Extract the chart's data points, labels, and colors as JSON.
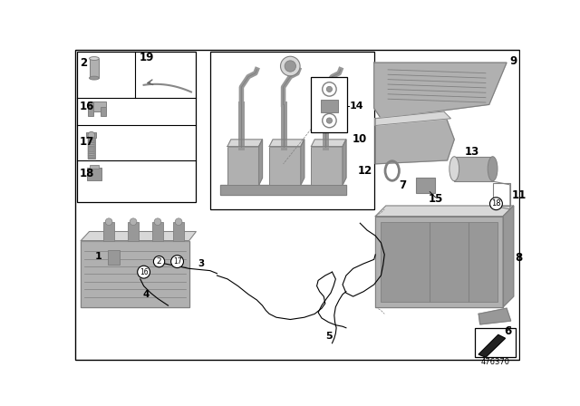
{
  "title": "",
  "background_color": "#ffffff",
  "fig_width": 6.4,
  "fig_height": 4.48,
  "dpi": 100,
  "diagram_number": "476370",
  "gray1": "#c8c8c8",
  "gray2": "#b0b0b0",
  "gray3": "#989898",
  "gray4": "#808080",
  "gray5": "#d8d8d8",
  "label_fs": 7.5
}
